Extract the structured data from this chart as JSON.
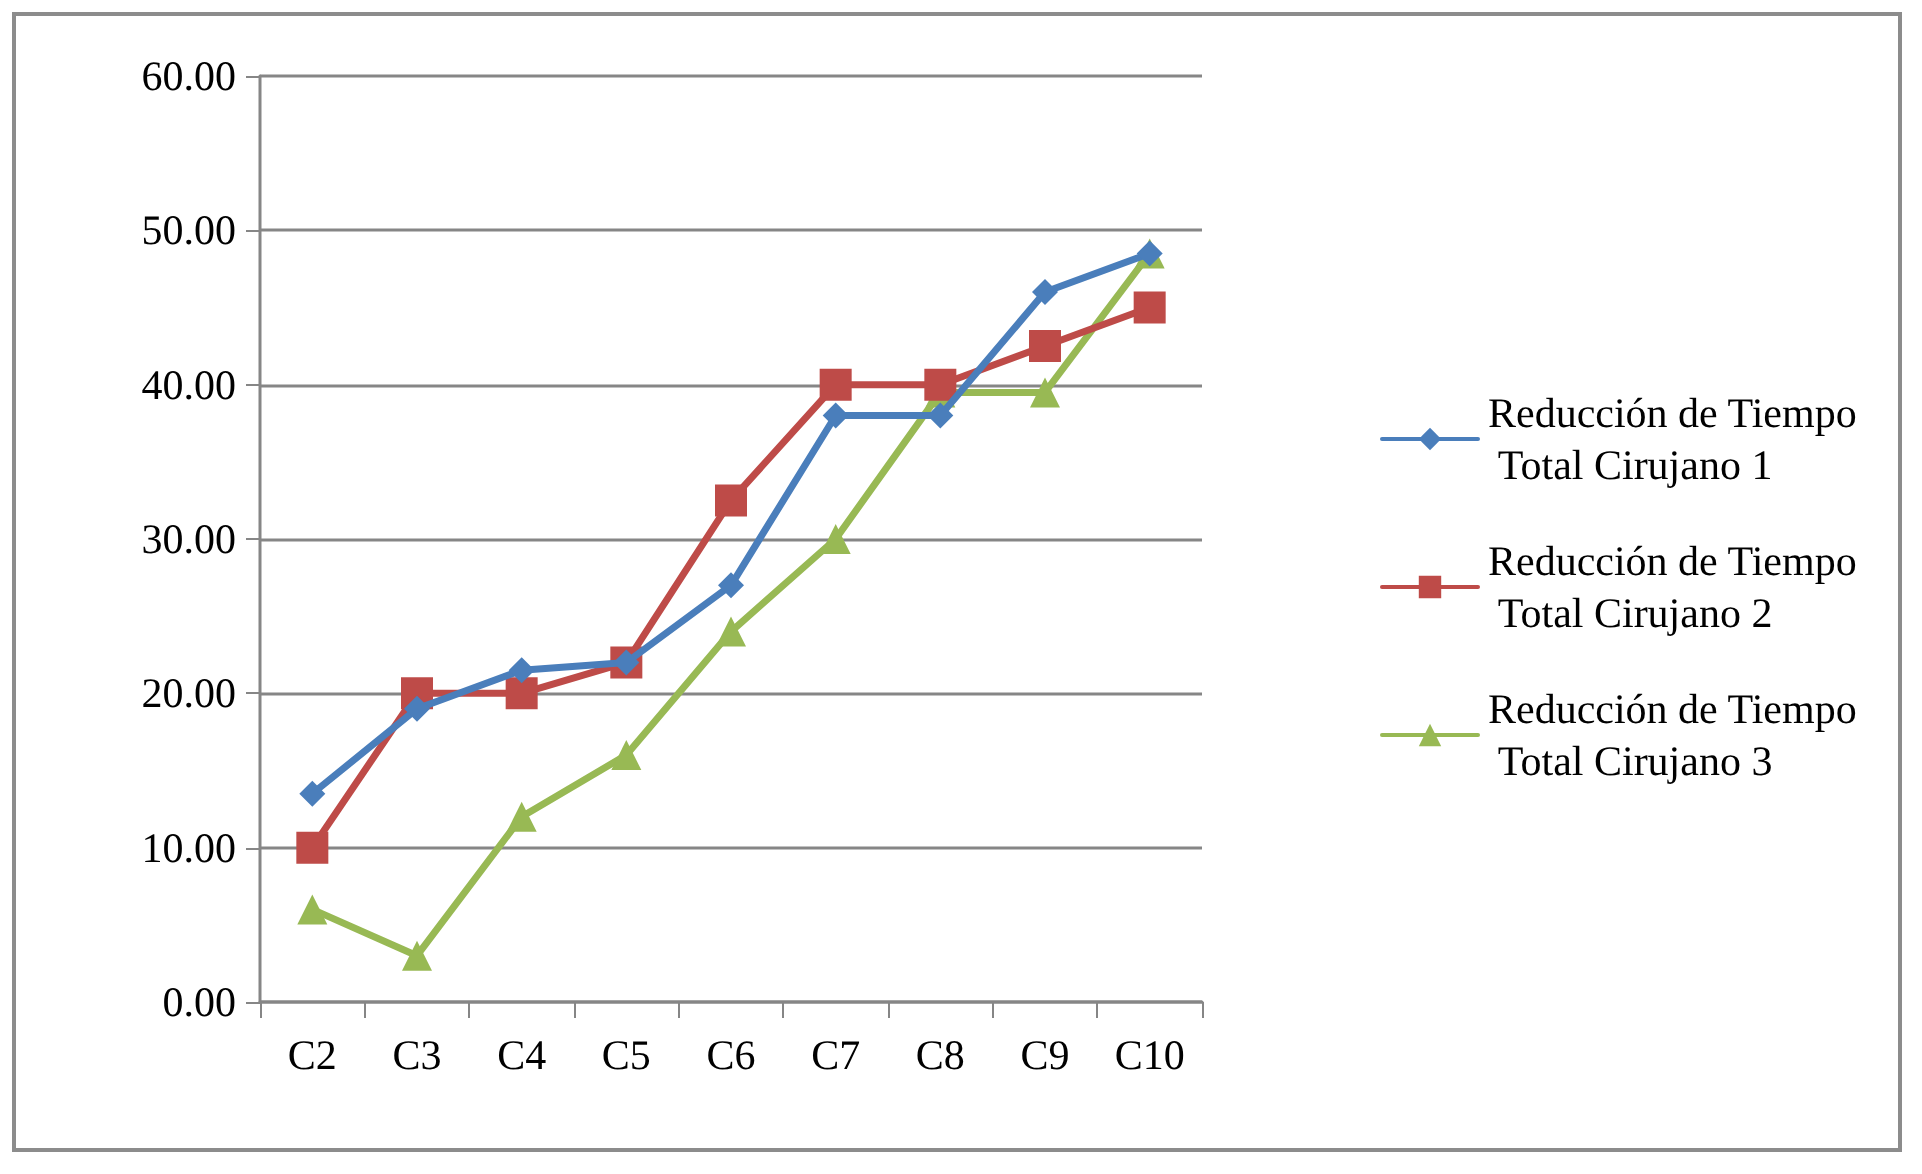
{
  "chart_data": {
    "type": "line",
    "categories": [
      "C2",
      "C3",
      "C4",
      "C5",
      "C6",
      "C7",
      "C8",
      "C9",
      "C10"
    ],
    "series": [
      {
        "name": "Reducción de Tiempo Total Cirujano 1",
        "color": "#4a7ebb",
        "marker": "diamond",
        "values": [
          13.5,
          19,
          21.5,
          22,
          27,
          38,
          38,
          46,
          48.5
        ]
      },
      {
        "name": "Reducción de Tiempo Total Cirujano 2",
        "color": "#be4b48",
        "marker": "square",
        "values": [
          10,
          20,
          20,
          22,
          32.5,
          40,
          40,
          42.5,
          45
        ]
      },
      {
        "name": "Reducción de Tiempo Total Cirujano 3",
        "color": "#98b954",
        "marker": "triangle",
        "values": [
          6,
          3,
          12,
          16,
          24,
          30,
          39.5,
          39.5,
          48.5
        ]
      }
    ],
    "ylim": [
      0,
      60
    ],
    "yticks": [
      {
        "value": 0,
        "label": "0.00"
      },
      {
        "value": 10,
        "label": "10.00"
      },
      {
        "value": 20,
        "label": "20.00"
      },
      {
        "value": 30,
        "label": "30.00"
      },
      {
        "value": 40,
        "label": "40.00"
      },
      {
        "value": 50,
        "label": "50.00"
      },
      {
        "value": 60,
        "label": "60.00"
      }
    ],
    "grid": "y",
    "legend": "right",
    "line_style": "solid"
  }
}
